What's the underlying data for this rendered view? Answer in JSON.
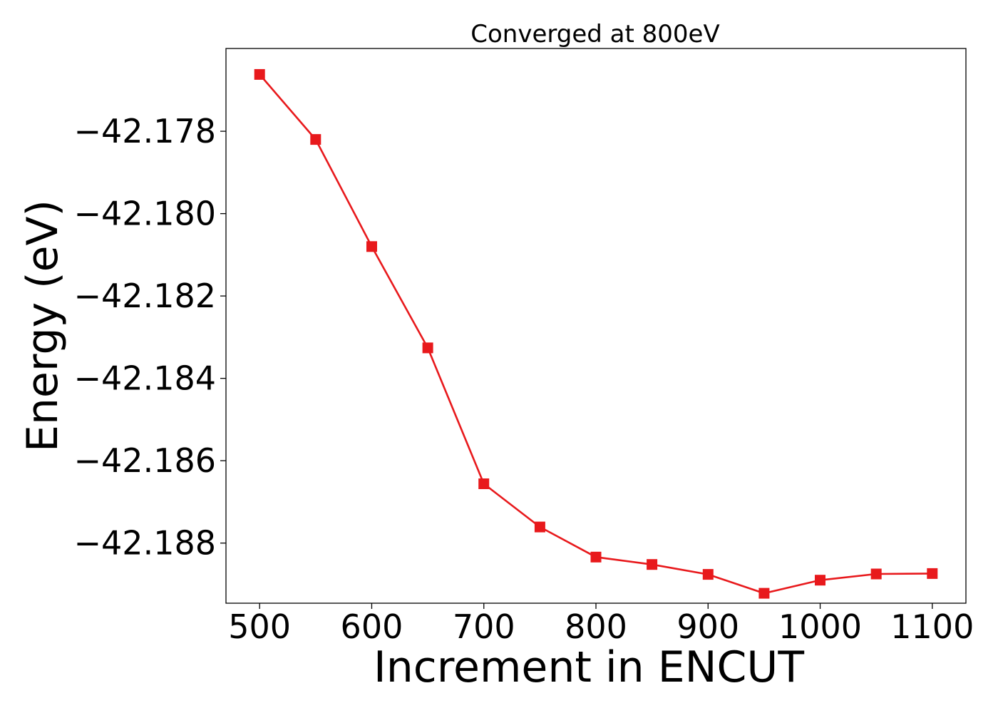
{
  "chart_data": {
    "type": "line",
    "title": "Converged at 800eV",
    "xlabel": "Increment in ENCUT",
    "ylabel": "Energy (eV)",
    "x": [
      500,
      550,
      600,
      650,
      700,
      750,
      800,
      850,
      900,
      950,
      1000,
      1050,
      1100
    ],
    "series": [
      {
        "values": [
          -42.17662,
          -42.1782,
          -42.1808,
          -42.18326,
          -42.18656,
          -42.18761,
          -42.18834,
          -42.18852,
          -42.18876,
          -42.18922,
          -42.1889,
          -42.18875,
          -42.18874
        ],
        "marker": "square"
      }
    ],
    "xticks": [
      500,
      600,
      700,
      800,
      900,
      1000,
      1100
    ],
    "xtick_labels": [
      "500",
      "600",
      "700",
      "800",
      "900",
      "1000",
      "1100"
    ],
    "yticks": [
      -42.178,
      -42.18,
      -42.182,
      -42.184,
      -42.186,
      -42.188
    ],
    "ytick_labels": [
      "−42.178",
      "−42.180",
      "−42.182",
      "−42.184",
      "−42.186",
      "−42.188"
    ],
    "xlim": [
      470,
      1130
    ],
    "ylim": [
      -42.18946,
      -42.17599
    ],
    "grid": false,
    "colors": {
      "series": "#e8191c",
      "axis": "#000000",
      "background": "#ffffff"
    }
  }
}
